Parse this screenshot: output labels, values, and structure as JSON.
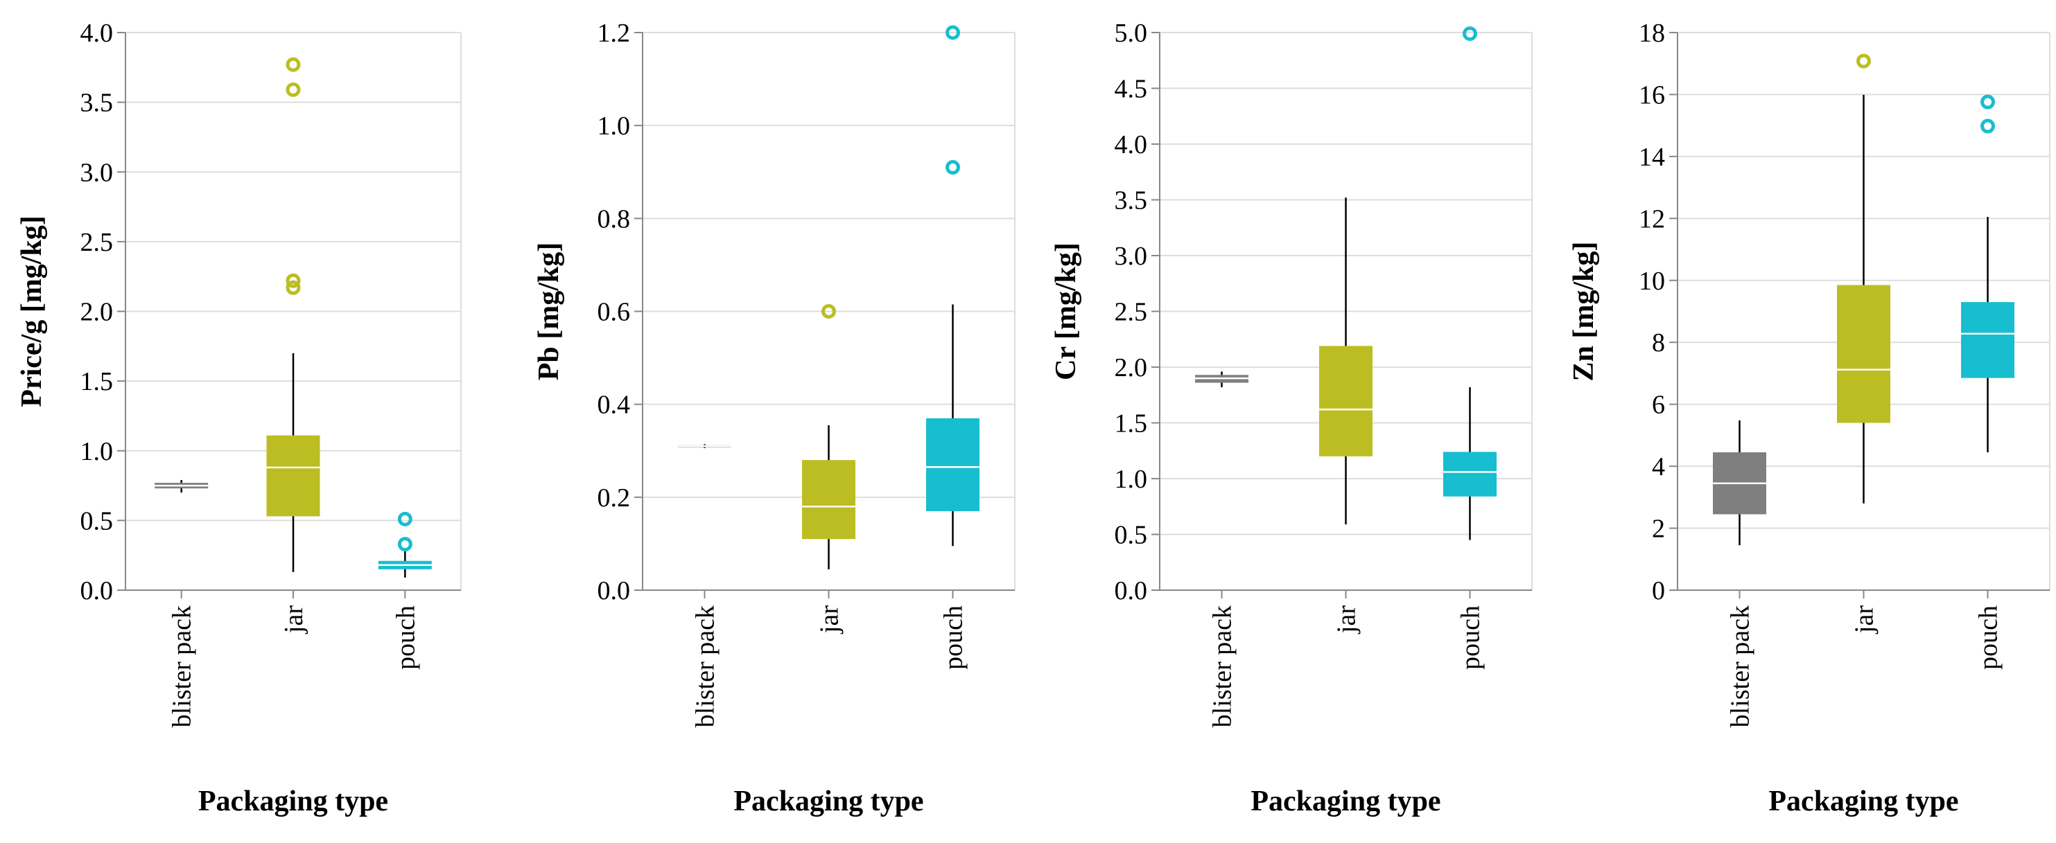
{
  "chart_data": [
    {
      "type": "box",
      "ylabel": "Price/g [mg/kg]",
      "xlabel": "Packaging type",
      "ylim": [
        0,
        4.0
      ],
      "yticks": [
        0.0,
        0.5,
        1.0,
        1.5,
        2.0,
        2.5,
        3.0,
        3.5,
        4.0
      ],
      "tick_decimals": 1,
      "categories": [
        "blister pack",
        "jar",
        "pouch"
      ],
      "colors": [
        "#7f7f7f",
        "#bcbd22",
        "#17becf"
      ],
      "boxes": [
        {
          "category": "blister pack",
          "whisker_low": 0.7,
          "q1": 0.73,
          "median": 0.75,
          "q3": 0.77,
          "whisker_high": 0.79,
          "outliers": []
        },
        {
          "category": "jar",
          "whisker_low": 0.13,
          "q1": 0.53,
          "median": 0.88,
          "q3": 1.11,
          "whisker_high": 1.7,
          "outliers": [
            2.17,
            2.22,
            3.59,
            3.77
          ]
        },
        {
          "category": "pouch",
          "whisker_low": 0.09,
          "q1": 0.15,
          "median": 0.18,
          "q3": 0.21,
          "whisker_high": 0.28,
          "outliers": [
            0.33,
            0.51
          ]
        }
      ]
    },
    {
      "type": "box",
      "ylabel": "Pb [mg/kg]",
      "xlabel": "Packaging type",
      "ylim": [
        0,
        1.2
      ],
      "yticks": [
        0.0,
        0.2,
        0.4,
        0.6,
        0.8,
        1.0,
        1.2
      ],
      "tick_decimals": 1,
      "categories": [
        "blister pack",
        "jar",
        "pouch"
      ],
      "colors": [
        "#7f7f7f",
        "#bcbd22",
        "#17becf"
      ],
      "boxes": [
        {
          "category": "blister pack",
          "whisker_low": 0.306,
          "q1": 0.308,
          "median": 0.31,
          "q3": 0.312,
          "whisker_high": 0.314,
          "outliers": []
        },
        {
          "category": "jar",
          "whisker_low": 0.045,
          "q1": 0.11,
          "median": 0.18,
          "q3": 0.28,
          "whisker_high": 0.355,
          "outliers": [
            0.6
          ]
        },
        {
          "category": "pouch",
          "whisker_low": 0.095,
          "q1": 0.17,
          "median": 0.265,
          "q3": 0.37,
          "whisker_high": 0.615,
          "outliers": [
            0.91,
            1.2
          ]
        }
      ]
    },
    {
      "type": "box",
      "ylabel": "Cr [mg/kg]",
      "xlabel": "Packaging type",
      "ylim": [
        0,
        5.0
      ],
      "yticks": [
        0.0,
        0.5,
        1.0,
        1.5,
        2.0,
        2.5,
        3.0,
        3.5,
        4.0,
        4.5,
        5.0
      ],
      "tick_decimals": 1,
      "categories": [
        "blister pack",
        "jar",
        "pouch"
      ],
      "colors": [
        "#7f7f7f",
        "#bcbd22",
        "#17becf"
      ],
      "boxes": [
        {
          "category": "blister pack",
          "whisker_low": 1.82,
          "q1": 1.86,
          "median": 1.9,
          "q3": 1.93,
          "whisker_high": 1.96,
          "outliers": []
        },
        {
          "category": "jar",
          "whisker_low": 0.59,
          "q1": 1.2,
          "median": 1.62,
          "q3": 2.19,
          "whisker_high": 3.52,
          "outliers": []
        },
        {
          "category": "pouch",
          "whisker_low": 0.45,
          "q1": 0.84,
          "median": 1.06,
          "q3": 1.24,
          "whisker_high": 1.82,
          "outliers": [
            4.99
          ]
        }
      ]
    },
    {
      "type": "box",
      "ylabel": "Zn [mg/kg]",
      "xlabel": "Packaging type",
      "ylim": [
        0,
        18
      ],
      "yticks": [
        0,
        2,
        4,
        6,
        8,
        10,
        12,
        14,
        16,
        18
      ],
      "tick_decimals": 0,
      "categories": [
        "blister pack",
        "jar",
        "pouch"
      ],
      "colors": [
        "#7f7f7f",
        "#bcbd22",
        "#17becf"
      ],
      "boxes": [
        {
          "category": "blister pack",
          "whisker_low": 1.45,
          "q1": 2.45,
          "median": 3.45,
          "q3": 4.45,
          "whisker_high": 5.48,
          "outliers": []
        },
        {
          "category": "jar",
          "whisker_low": 2.8,
          "q1": 5.4,
          "median": 7.12,
          "q3": 9.85,
          "whisker_high": 15.99,
          "outliers": [
            17.08
          ]
        },
        {
          "category": "pouch",
          "whisker_low": 4.45,
          "q1": 6.85,
          "median": 8.28,
          "q3": 9.3,
          "whisker_high": 12.05,
          "outliers": [
            14.98,
            15.76
          ]
        }
      ]
    }
  ]
}
